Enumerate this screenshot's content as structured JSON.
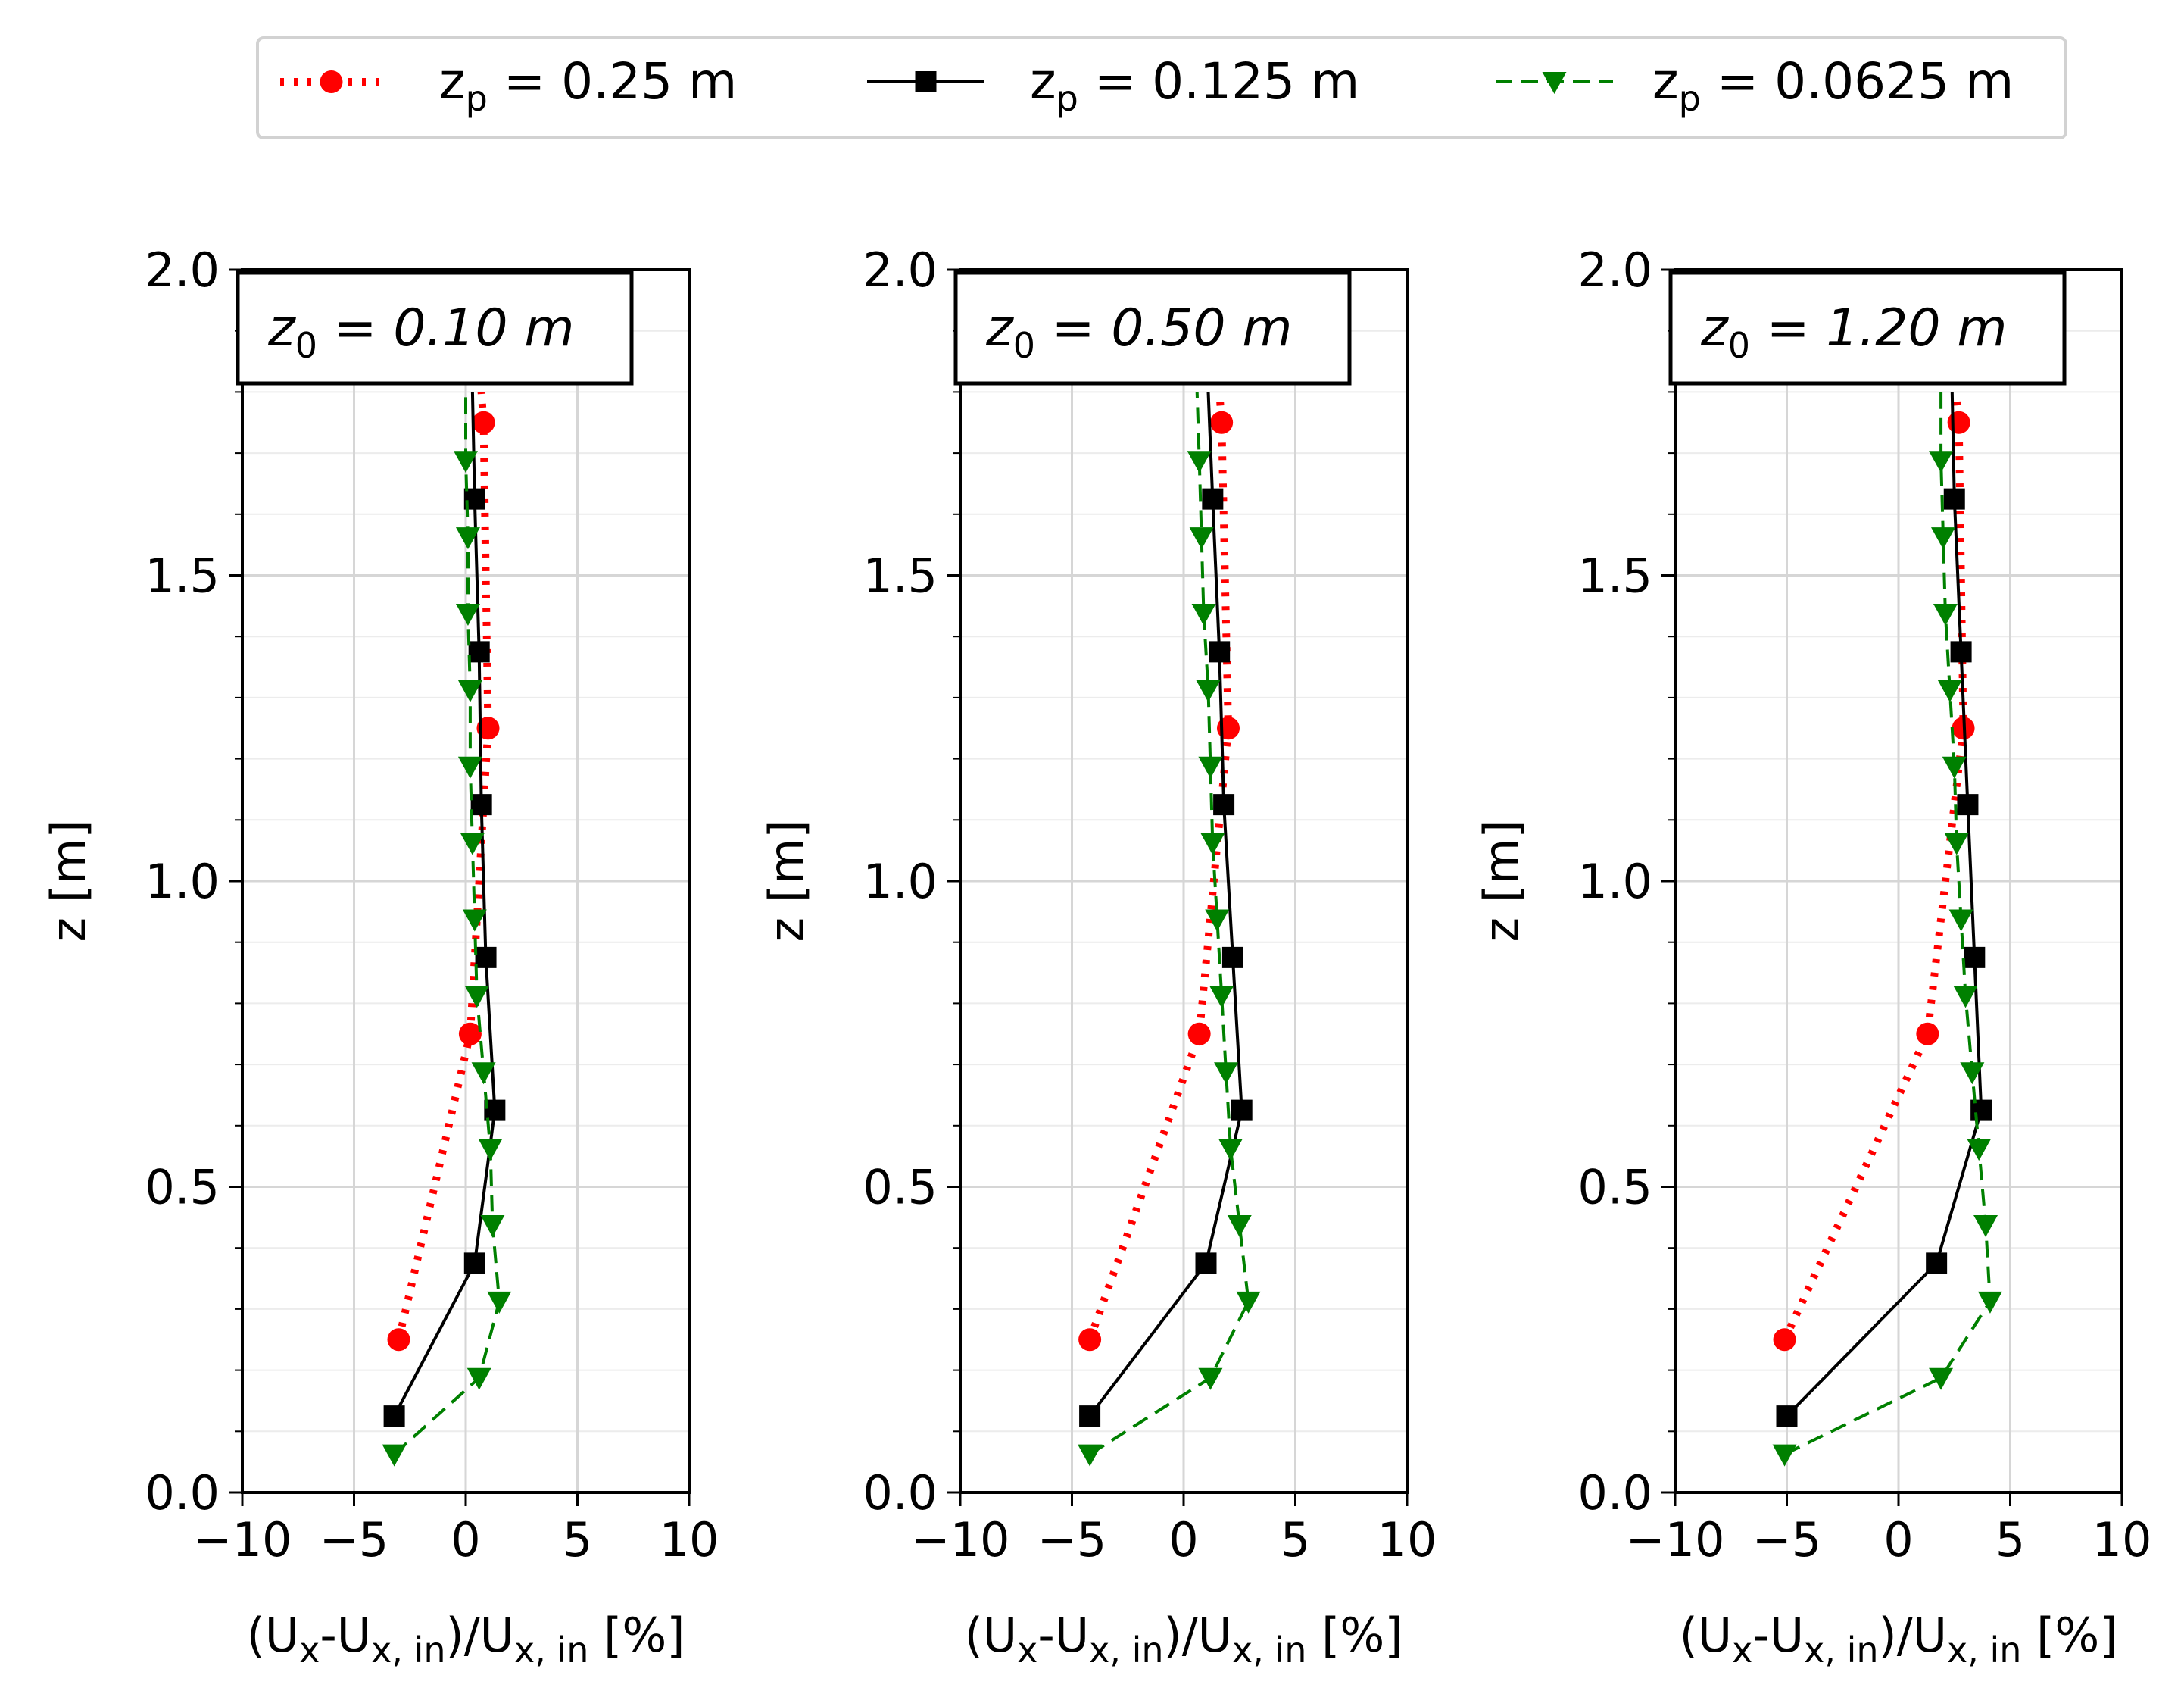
{
  "legend": {
    "entries": [
      {
        "series": "red",
        "main": "z",
        "sub": "p",
        "rest": " = 0.25 m"
      },
      {
        "series": "black",
        "main": "z",
        "sub": "p",
        "rest": " = 0.125 m"
      },
      {
        "series": "green",
        "main": "z",
        "sub": "p",
        "rest": " = 0.0625 m"
      }
    ]
  },
  "series_styles": {
    "red": {
      "color": "#ff0000",
      "marker": "circle",
      "line": "dotted"
    },
    "black": {
      "color": "#000000",
      "marker": "square",
      "line": "solid"
    },
    "green": {
      "color": "#008000",
      "marker": "triangle-down",
      "line": "dashed"
    }
  },
  "chart_data": [
    {
      "type": "line",
      "annotation": {
        "main": "z",
        "sub": "0",
        "rest": " = 0.10 m"
      },
      "xlabel": {
        "p1": "(U",
        "s1": "x",
        "p2": "-U",
        "s2": "x, in",
        "p3": ")/U",
        "s3": "x, in",
        "p4": " [%]"
      },
      "ylabel": "z [m]",
      "xlim": [
        -10,
        10
      ],
      "ylim": [
        0.0,
        2.0
      ],
      "xticks": [
        -10,
        -5,
        0,
        5,
        10
      ],
      "xtick_labels": [
        "−10",
        "−5",
        "0",
        "5",
        "10"
      ],
      "yticks": [
        0.0,
        0.5,
        1.0,
        1.5,
        2.0
      ],
      "ytick_labels": [
        "0.0",
        "0.5",
        "1.0",
        "1.5",
        "2.0"
      ],
      "grid": true,
      "series": [
        {
          "name": "z_p = 0.25 m",
          "style": "red",
          "x": [
            -3.0,
            0.2,
            1.0,
            0.8,
            0.7
          ],
          "y": [
            0.25,
            0.75,
            1.25,
            1.75,
            1.8
          ]
        },
        {
          "name": "z_p = 0.125 m",
          "style": "black",
          "x": [
            -3.2,
            0.4,
            1.3,
            0.9,
            0.7,
            0.6,
            0.4,
            0.3
          ],
          "y": [
            0.125,
            0.375,
            0.625,
            0.875,
            1.125,
            1.375,
            1.625,
            1.8
          ]
        },
        {
          "name": "z_p = 0.0625 m",
          "style": "green",
          "x": [
            -3.2,
            0.6,
            1.5,
            1.2,
            1.1,
            0.8,
            0.5,
            0.4,
            0.3,
            0.2,
            0.2,
            0.1,
            0.1,
            0.0,
            0.0
          ],
          "y": [
            0.0625,
            0.1875,
            0.3125,
            0.4375,
            0.5625,
            0.6875,
            0.8125,
            0.9375,
            1.0625,
            1.1875,
            1.3125,
            1.4375,
            1.5625,
            1.6875,
            1.8
          ]
        }
      ]
    },
    {
      "type": "line",
      "annotation": {
        "main": "z",
        "sub": "0",
        "rest": " = 0.50 m"
      },
      "xlabel": {
        "p1": "(U",
        "s1": "x",
        "p2": "-U",
        "s2": "x, in",
        "p3": ")/U",
        "s3": "x, in",
        "p4": " [%]"
      },
      "ylabel": "z [m]",
      "xlim": [
        -10,
        10
      ],
      "ylim": [
        0.0,
        2.0
      ],
      "xticks": [
        -10,
        -5,
        0,
        5,
        10
      ],
      "xtick_labels": [
        "−10",
        "−5",
        "0",
        "5",
        "10"
      ],
      "yticks": [
        0.0,
        0.5,
        1.0,
        1.5,
        2.0
      ],
      "ytick_labels": [
        "0.0",
        "0.5",
        "1.0",
        "1.5",
        "2.0"
      ],
      "grid": true,
      "series": [
        {
          "name": "z_p = 0.25 m",
          "style": "red",
          "x": [
            -4.2,
            0.7,
            2.0,
            1.7,
            1.6
          ],
          "y": [
            0.25,
            0.75,
            1.25,
            1.75,
            1.8
          ]
        },
        {
          "name": "z_p = 0.125 m",
          "style": "black",
          "x": [
            -4.2,
            1.0,
            2.6,
            2.2,
            1.8,
            1.6,
            1.3,
            1.1
          ],
          "y": [
            0.125,
            0.375,
            0.625,
            0.875,
            1.125,
            1.375,
            1.625,
            1.8
          ]
        },
        {
          "name": "z_p = 0.0625 m",
          "style": "green",
          "x": [
            -4.2,
            1.2,
            2.9,
            2.5,
            2.1,
            1.9,
            1.7,
            1.5,
            1.3,
            1.2,
            1.1,
            0.9,
            0.8,
            0.7,
            0.6
          ],
          "y": [
            0.0625,
            0.1875,
            0.3125,
            0.4375,
            0.5625,
            0.6875,
            0.8125,
            0.9375,
            1.0625,
            1.1875,
            1.3125,
            1.4375,
            1.5625,
            1.6875,
            1.8
          ]
        }
      ]
    },
    {
      "type": "line",
      "annotation": {
        "main": "z",
        "sub": "0",
        "rest": " = 1.20 m"
      },
      "xlabel": {
        "p1": "(U",
        "s1": "x",
        "p2": "-U",
        "s2": "x, in",
        "p3": ")/U",
        "s3": "x, in",
        "p4": " [%]"
      },
      "ylabel": "z [m]",
      "xlim": [
        -10,
        10
      ],
      "ylim": [
        0.0,
        2.0
      ],
      "xticks": [
        -10,
        -5,
        0,
        5,
        10
      ],
      "xtick_labels": [
        "−10",
        "−5",
        "0",
        "5",
        "10"
      ],
      "yticks": [
        0.0,
        0.5,
        1.0,
        1.5,
        2.0
      ],
      "ytick_labels": [
        "0.0",
        "0.5",
        "1.0",
        "1.5",
        "2.0"
      ],
      "grid": true,
      "series": [
        {
          "name": "z_p = 0.25 m",
          "style": "red",
          "x": [
            -5.1,
            1.3,
            2.9,
            2.7,
            2.6
          ],
          "y": [
            0.25,
            0.75,
            1.25,
            1.75,
            1.8
          ]
        },
        {
          "name": "z_p = 0.125 m",
          "style": "black",
          "x": [
            -5.0,
            1.7,
            3.7,
            3.4,
            3.1,
            2.8,
            2.5,
            2.4
          ],
          "y": [
            0.125,
            0.375,
            0.625,
            0.875,
            1.125,
            1.375,
            1.625,
            1.8
          ]
        },
        {
          "name": "z_p = 0.0625 m",
          "style": "green",
          "x": [
            -5.1,
            1.9,
            4.1,
            3.9,
            3.6,
            3.3,
            3.0,
            2.8,
            2.6,
            2.5,
            2.3,
            2.1,
            2.0,
            1.9,
            1.9
          ],
          "y": [
            0.0625,
            0.1875,
            0.3125,
            0.4375,
            0.5625,
            0.6875,
            0.8125,
            0.9375,
            1.0625,
            1.1875,
            1.3125,
            1.4375,
            1.5625,
            1.6875,
            1.8
          ]
        }
      ]
    }
  ]
}
